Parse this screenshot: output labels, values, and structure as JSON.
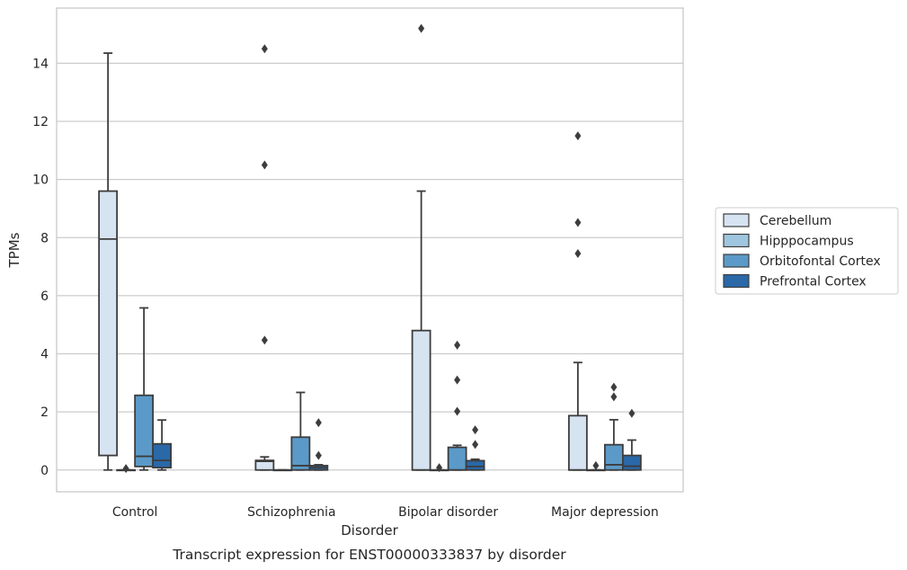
{
  "chart_data": {
    "type": "box",
    "caption": "Transcript expression for ENST00000333837 by disorder",
    "xlabel": "Disorder",
    "ylabel": "TPMs",
    "ylim": [
      -0.75,
      15.9
    ],
    "yticks": [
      0,
      2,
      4,
      6,
      8,
      10,
      12,
      14
    ],
    "grid": "horizontal",
    "legend_position": "right",
    "categories": [
      "Control",
      "Schizophrenia",
      "Bipolar disorder",
      "Major depression"
    ],
    "series": [
      {
        "name": "Cerebellum",
        "color": "#d6e3f1",
        "boxes": [
          {
            "q1": 0.5,
            "median": 7.95,
            "q3": 9.6,
            "whisker_low": 0.0,
            "whisker_high": 14.35,
            "outliers": []
          },
          {
            "q1": 0.0,
            "median": 0.3,
            "q3": 0.33,
            "whisker_low": 0.0,
            "whisker_high": 0.45,
            "outliers": [
              4.47,
              10.5,
              14.5
            ]
          },
          {
            "q1": 0.0,
            "median": 0.0,
            "q3": 4.8,
            "whisker_low": 0.0,
            "whisker_high": 9.6,
            "outliers": [
              15.2
            ]
          },
          {
            "q1": 0.0,
            "median": 0.0,
            "q3": 1.87,
            "whisker_low": 0.0,
            "whisker_high": 3.7,
            "outliers": [
              7.45,
              8.52,
              11.5
            ]
          }
        ]
      },
      {
        "name": "Hipppocampus",
        "color": "#9fc6df",
        "boxes": [
          {
            "q1": 0.0,
            "median": 0.0,
            "q3": 0.0,
            "whisker_low": 0.0,
            "whisker_high": 0.0,
            "outliers": [
              0.05
            ]
          },
          {
            "q1": 0.0,
            "median": 0.0,
            "q3": 0.0,
            "whisker_low": 0.0,
            "whisker_high": 0.0,
            "outliers": []
          },
          {
            "q1": 0.0,
            "median": 0.0,
            "q3": 0.0,
            "whisker_low": 0.0,
            "whisker_high": 0.0,
            "outliers": [
              0.08
            ]
          },
          {
            "q1": 0.0,
            "median": 0.0,
            "q3": 0.0,
            "whisker_low": 0.0,
            "whisker_high": 0.0,
            "outliers": [
              0.15
            ]
          }
        ]
      },
      {
        "name": "Orbitofontal Cortex",
        "color": "#5b9ac8",
        "boxes": [
          {
            "q1": 0.12,
            "median": 0.47,
            "q3": 2.57,
            "whisker_low": 0.0,
            "whisker_high": 5.58,
            "outliers": []
          },
          {
            "q1": 0.0,
            "median": 0.15,
            "q3": 1.13,
            "whisker_low": 0.0,
            "whisker_high": 2.67,
            "outliers": []
          },
          {
            "q1": 0.0,
            "median": 0.0,
            "q3": 0.78,
            "whisker_low": 0.0,
            "whisker_high": 0.85,
            "outliers": [
              2.02,
              3.1,
              4.3
            ]
          },
          {
            "q1": 0.0,
            "median": 0.18,
            "q3": 0.87,
            "whisker_low": 0.0,
            "whisker_high": 1.73,
            "outliers": [
              2.52,
              2.85
            ]
          }
        ]
      },
      {
        "name": "Prefrontal Cortex",
        "color": "#2a68a8",
        "boxes": [
          {
            "q1": 0.08,
            "median": 0.33,
            "q3": 0.9,
            "whisker_low": 0.0,
            "whisker_high": 1.72,
            "outliers": []
          },
          {
            "q1": 0.0,
            "median": 0.08,
            "q3": 0.15,
            "whisker_low": 0.0,
            "whisker_high": 0.18,
            "outliers": [
              0.5,
              1.63
            ]
          },
          {
            "q1": 0.0,
            "median": 0.12,
            "q3": 0.32,
            "whisker_low": 0.0,
            "whisker_high": 0.37,
            "outliers": [
              0.88,
              1.38
            ]
          },
          {
            "q1": 0.0,
            "median": 0.13,
            "q3": 0.5,
            "whisker_low": 0.0,
            "whisker_high": 1.03,
            "outliers": [
              1.95
            ]
          }
        ]
      }
    ]
  }
}
